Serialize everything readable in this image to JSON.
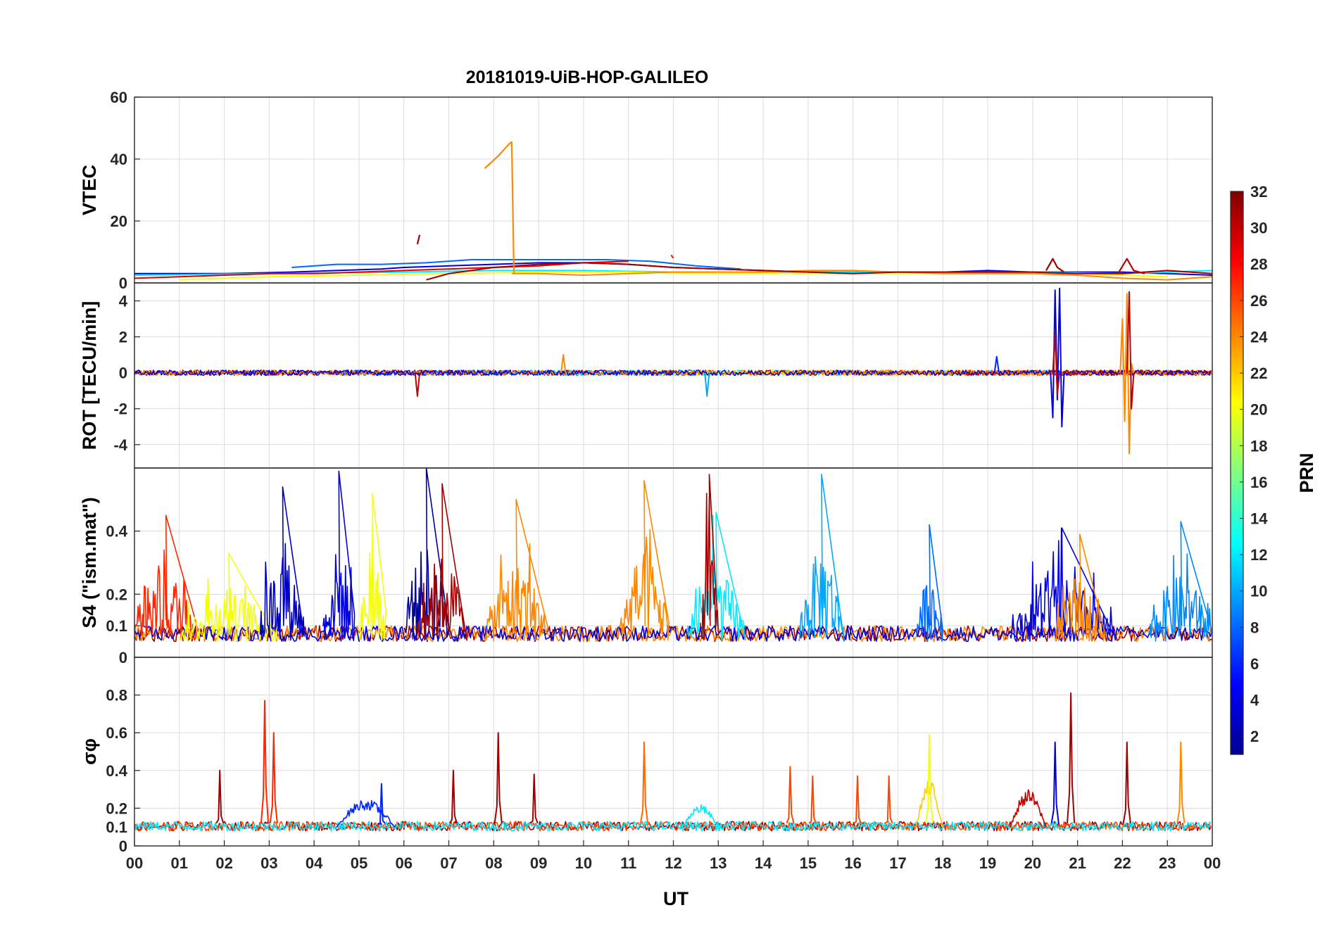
{
  "chart_data": {
    "type": "line",
    "title": "20181019-UiB-HOP-GALILEO",
    "x": {
      "label": "UT",
      "range_hours": [
        0,
        24
      ],
      "tick_labels": [
        "00",
        "01",
        "02",
        "03",
        "04",
        "05",
        "06",
        "07",
        "08",
        "09",
        "10",
        "11",
        "12",
        "13",
        "14",
        "15",
        "16",
        "17",
        "18",
        "19",
        "20",
        "21",
        "22",
        "23",
        "00"
      ]
    },
    "colorbar": {
      "label": "PRN",
      "range": [
        1,
        32
      ],
      "tick_labels": [
        "2",
        "4",
        "6",
        "8",
        "10",
        "12",
        "14",
        "16",
        "18",
        "20",
        "22",
        "24",
        "26",
        "28",
        "30",
        "32"
      ],
      "colormap": "jet",
      "colors": [
        "#00008f",
        "#0000ff",
        "#0080ff",
        "#00ffff",
        "#80ff80",
        "#ffff00",
        "#ff8000",
        "#ff0000",
        "#800000"
      ]
    },
    "panels": [
      {
        "id": "vtec",
        "ylabel": "VTEC",
        "ylim": [
          0,
          60
        ],
        "ytick_labels": [
          "0",
          "20",
          "40",
          "60"
        ],
        "features": [
          {
            "prn": 24,
            "x": [
              7.8,
              8.1,
              8.35,
              8.4,
              8.45
            ],
            "y": [
              37,
              41,
              45,
              45.5,
              3
            ]
          },
          {
            "prn": 31,
            "x": [
              6.3,
              6.35
            ],
            "y": [
              12.5,
              15.5
            ]
          },
          {
            "prn": 27,
            "x": [
              11.95,
              12.0
            ],
            "y": [
              9,
              8
            ]
          },
          {
            "prn": 31,
            "x": [
              20.3,
              20.45,
              20.55,
              20.7
            ],
            "y": [
              4,
              7.8,
              5,
              3.5
            ]
          },
          {
            "prn": 30,
            "x": [
              21.9,
              22.1,
              22.25,
              22.5
            ],
            "y": [
              3,
              7.8,
              4,
              3
            ]
          }
        ],
        "series": [
          {
            "prn": 4,
            "x": [
              0,
              2,
              3.5,
              4.5,
              5.5,
              6,
              7,
              8,
              9,
              10,
              11,
              12,
              13,
              14,
              15,
              16,
              17,
              18,
              19,
              20,
              21,
              22,
              23,
              24
            ],
            "y": [
              3,
              3,
              3.5,
              4,
              4.5,
              5,
              5.5,
              6,
              6.5,
              6.5,
              6,
              5,
              4.5,
              4,
              3.5,
              3.5,
              3.5,
              3.5,
              4,
              3.5,
              3.5,
              3.5,
              3,
              2.5
            ]
          },
          {
            "prn": 8,
            "x": [
              3.5,
              4.5,
              5.5,
              6.5,
              7.5,
              8.5,
              9.5,
              10.5,
              11.5,
              12.5,
              13.5
            ],
            "y": [
              5,
              6,
              6,
              6.5,
              7.5,
              7.5,
              7.5,
              7.5,
              7,
              5.5,
              4.5
            ]
          },
          {
            "prn": 12,
            "x": [
              0,
              3,
              6,
              8,
              10,
              12,
              14,
              16,
              18,
              20,
              22,
              24
            ],
            "y": [
              2.5,
              3,
              3.5,
              4,
              4,
              3.5,
              3.5,
              3.5,
              3.5,
              3.5,
              3,
              4
            ]
          },
          {
            "prn": 20,
            "x": [
              1,
              3,
              5,
              7,
              9,
              11,
              13,
              15,
              17,
              19,
              21,
              23
            ],
            "y": [
              1,
              2,
              2.5,
              3,
              3.5,
              3.5,
              3,
              3,
              3,
              3.5,
              3,
              2
            ]
          },
          {
            "prn": 24,
            "x": [
              8.4,
              9,
              10,
              11,
              12,
              13,
              14,
              15,
              16,
              17,
              18,
              19,
              20,
              21,
              22,
              23,
              24
            ],
            "y": [
              3,
              3,
              2.5,
              3,
              3.5,
              3.5,
              3.5,
              4,
              4,
              3.5,
              3,
              3,
              3,
              2.5,
              1.5,
              1,
              2
            ]
          },
          {
            "prn": 29,
            "x": [
              0,
              1,
              2,
              3,
              4,
              5,
              6,
              7,
              8,
              9,
              10,
              11
            ],
            "y": [
              1.5,
              2,
              2.5,
              3,
              3,
              3.5,
              4,
              4.5,
              5,
              5.5,
              6.5,
              7
            ]
          },
          {
            "prn": 31,
            "x": [
              6.5,
              7,
              8,
              9,
              10,
              11,
              12,
              13,
              14,
              15,
              16,
              17,
              18,
              19,
              20,
              21,
              22,
              23,
              24
            ],
            "y": [
              1,
              3,
              5,
              6,
              6.5,
              6,
              5,
              4.5,
              4,
              3.5,
              3,
              3.5,
              3.5,
              3.5,
              3.5,
              3,
              3,
              4,
              3
            ]
          }
        ]
      },
      {
        "id": "rot",
        "ylabel": "ROT [TECU/min]",
        "ylim": [
          -5.3,
          5
        ],
        "ytick_labels": [
          "-4",
          "-2",
          "0",
          "2",
          "4"
        ],
        "features": [
          {
            "prn": 4,
            "x": [
              20.4,
              20.45,
              20.5,
              20.55,
              20.6,
              20.65,
              20.7
            ],
            "y": [
              0,
              -2.5,
              4.6,
              -1.5,
              4.7,
              -3,
              0
            ]
          },
          {
            "prn": 30,
            "x": [
              20.45,
              20.5,
              20.55,
              20.6
            ],
            "y": [
              0,
              2.2,
              -1.2,
              0
            ]
          },
          {
            "prn": 24,
            "x": [
              21.95,
              22.0,
              22.05,
              22.1,
              22.15,
              22.2,
              22.25
            ],
            "y": [
              0,
              3.0,
              -2.7,
              4.4,
              -4.5,
              0.5,
              0
            ]
          },
          {
            "prn": 30,
            "x": [
              22.1,
              22.15,
              22.2,
              22.25
            ],
            "y": [
              0,
              4.5,
              -2.0,
              0
            ]
          },
          {
            "prn": 10,
            "x": [
              12.7,
              12.75,
              12.8
            ],
            "y": [
              0,
              -1.3,
              0
            ]
          },
          {
            "prn": 30,
            "x": [
              6.25,
              6.3,
              6.35
            ],
            "y": [
              0,
              -1.3,
              0
            ]
          },
          {
            "prn": 24,
            "x": [
              9.5,
              9.55,
              9.6
            ],
            "y": [
              0,
              1.0,
              0
            ]
          },
          {
            "prn": 6,
            "x": [
              19.15,
              19.2,
              19.25
            ],
            "y": [
              0,
              0.9,
              0
            ]
          }
        ],
        "series_prns": [
          2,
          4,
          8,
          10,
          12,
          19,
          22,
          24,
          27,
          31
        ],
        "noise_amplitude": 0.15,
        "baseline": 0
      },
      {
        "id": "s4",
        "ylabel": "S4 (\"ism.mat\")",
        "ylim": [
          0,
          0.6
        ],
        "ytick_labels": [
          "0",
          "0.1",
          "0.2",
          "0.4"
        ],
        "floor": 0.05,
        "activity_windows": [
          {
            "prn": 27,
            "x": [
              0.0,
              1.4
            ],
            "peak": 0.45
          },
          {
            "prn": 20,
            "x": [
              1.0,
              3.2
            ],
            "peak": 0.33
          },
          {
            "prn": 3,
            "x": [
              2.8,
              3.8
            ],
            "peak": 0.54
          },
          {
            "prn": 4,
            "x": [
              4.2,
              4.9
            ],
            "peak": 0.59
          },
          {
            "prn": 20,
            "x": [
              5.0,
              5.6
            ],
            "peak": 0.52
          },
          {
            "prn": 2,
            "x": [
              6.0,
              7.0
            ],
            "peak": 0.6
          },
          {
            "prn": 31,
            "x": [
              6.3,
              7.4
            ],
            "peak": 0.55
          },
          {
            "prn": 24,
            "x": [
              7.8,
              9.2
            ],
            "peak": 0.5
          },
          {
            "prn": 24,
            "x": [
              10.8,
              11.9
            ],
            "peak": 0.56
          },
          {
            "prn": 12,
            "x": [
              12.3,
              13.6
            ],
            "peak": 0.46
          },
          {
            "prn": 31,
            "x": [
              12.6,
              13.0
            ],
            "peak": 0.58
          },
          {
            "prn": 10,
            "x": [
              14.8,
              15.8
            ],
            "peak": 0.58
          },
          {
            "prn": 8,
            "x": [
              17.4,
              18.0
            ],
            "peak": 0.42
          },
          {
            "prn": 4,
            "x": [
              19.5,
              21.8
            ],
            "peak": 0.41
          },
          {
            "prn": 9,
            "x": [
              22.6,
              24.0
            ],
            "peak": 0.43
          },
          {
            "prn": 24,
            "x": [
              20.5,
              21.6
            ],
            "peak": 0.39
          }
        ]
      },
      {
        "id": "sigma_phi",
        "ylabel": "σφ",
        "ylim": [
          0,
          1.0
        ],
        "ytick_labels": [
          "0",
          "0.1",
          "0.2",
          "0.4",
          "0.6",
          "0.8"
        ],
        "baseline": 0.1,
        "peaks": [
          {
            "prn": 31,
            "x": 1.9,
            "y": 0.4
          },
          {
            "prn": 27,
            "x": 2.9,
            "y": 0.77
          },
          {
            "prn": 27,
            "x": 3.1,
            "y": 0.6
          },
          {
            "prn": 6,
            "x": 5.5,
            "y": 0.33
          },
          {
            "prn": 31,
            "x": 7.1,
            "y": 0.4
          },
          {
            "prn": 31,
            "x": 8.1,
            "y": 0.6
          },
          {
            "prn": 31,
            "x": 8.9,
            "y": 0.38
          },
          {
            "prn": 25,
            "x": 11.35,
            "y": 0.55
          },
          {
            "prn": 26,
            "x": 14.6,
            "y": 0.42
          },
          {
            "prn": 26,
            "x": 15.1,
            "y": 0.37
          },
          {
            "prn": 26,
            "x": 16.1,
            "y": 0.37
          },
          {
            "prn": 26,
            "x": 16.8,
            "y": 0.37
          },
          {
            "prn": 20,
            "x": 17.7,
            "y": 0.59
          },
          {
            "prn": 4,
            "x": 20.5,
            "y": 0.55
          },
          {
            "prn": 31,
            "x": 20.85,
            "y": 0.81
          },
          {
            "prn": 31,
            "x": 22.1,
            "y": 0.55
          },
          {
            "prn": 24,
            "x": 23.3,
            "y": 0.55
          }
        ],
        "bumps": [
          {
            "prn": 6,
            "x": [
              4.5,
              5.8
            ],
            "y": 0.25
          },
          {
            "prn": 12,
            "x": [
              12.2,
              13.0
            ],
            "y": 0.22
          },
          {
            "prn": 22,
            "x": [
              17.4,
              18.0
            ],
            "y": 0.35
          },
          {
            "prn": 30,
            "x": [
              19.5,
              20.3
            ],
            "y": 0.3
          }
        ]
      }
    ]
  }
}
